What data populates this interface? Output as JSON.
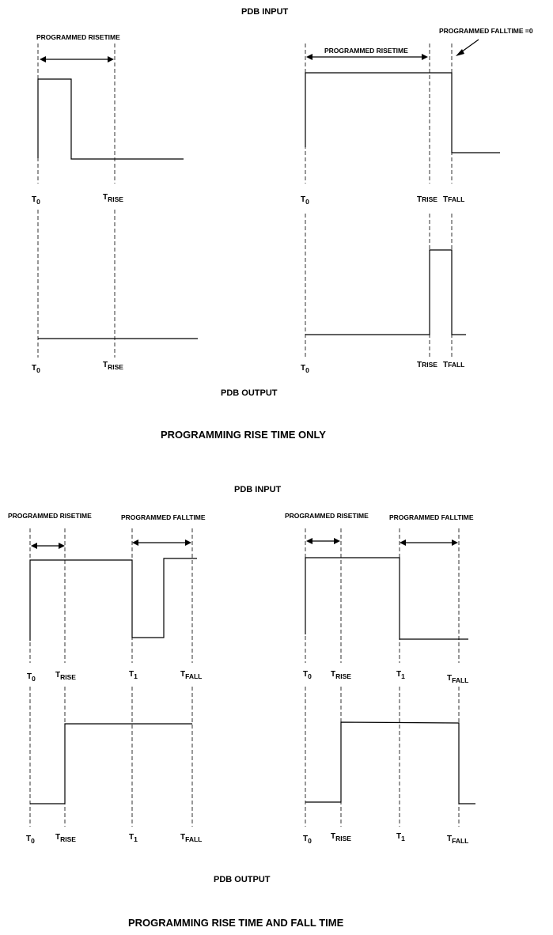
{
  "top_section": {
    "input_header": "PDB INPUT",
    "output_header": "PDB OUTPUT",
    "caption": "PROGRAMMING RISE TIME ONLY",
    "left_panel": {
      "risetime_label": "PROGRAMMED RISETIME",
      "t0_label": "T",
      "t0_sub": "0",
      "trise_label": "T",
      "trise_sub": "RISE",
      "out_t0_label": "T",
      "out_t0_sub": "0",
      "out_trise_label": "T",
      "out_trise_sub": "RISE"
    },
    "right_panel": {
      "risetime_label": "PROGRAMMED RISETIME",
      "falltime_label": "PROGRAMMED FALLTIME =0",
      "t0_label": "T",
      "t0_sub": "0",
      "trise_label": "T",
      "trise_sub": "RISE",
      "tfall_label": "T",
      "tfall_sub": "FALL",
      "out_t0_label": "T",
      "out_t0_sub": "0",
      "out_trise_label": "T",
      "out_trise_sub": "RISE",
      "out_tfall_label": "T",
      "out_tfall_sub": "FALL"
    }
  },
  "bottom_section": {
    "input_header": "PDB INPUT",
    "output_header": "PDB OUTPUT",
    "caption": "PROGRAMMING RISE TIME AND FALL TIME",
    "left_panel": {
      "risetime_label": "PROGRAMMED RISETIME",
      "falltime_label": "PROGRAMMED FALLTIME",
      "t0_label": "T",
      "t0_sub": "0",
      "trise_label": "T",
      "trise_sub": "RISE",
      "t1_label": "T",
      "t1_sub": "1",
      "tfall_label": "T",
      "tfall_sub": "FALL",
      "out_t0_label": "T",
      "out_t0_sub": "0",
      "out_trise_label": "T",
      "out_trise_sub": "RISE",
      "out_t1_label": "T",
      "out_t1_sub": "1",
      "out_tfall_label": "T",
      "out_tfall_sub": "FALL"
    },
    "right_panel": {
      "risetime_label": "PROGRAMMED RISETIME",
      "falltime_label": "PROGRAMMED FALLTIME",
      "t0_label": "T",
      "t0_sub": "0",
      "trise_label": "T",
      "trise_sub": "RISE",
      "t1_label": "T",
      "t1_sub": "1",
      "tfall_label": "T",
      "tfall_sub": "FALL",
      "out_t0_label": "T",
      "out_t0_sub": "0",
      "out_trise_label": "T",
      "out_trise_sub": "RISE",
      "out_t1_label": "T",
      "out_t1_sub": "1",
      "out_tfall_label": "T",
      "out_tfall_sub": "FALL"
    }
  }
}
